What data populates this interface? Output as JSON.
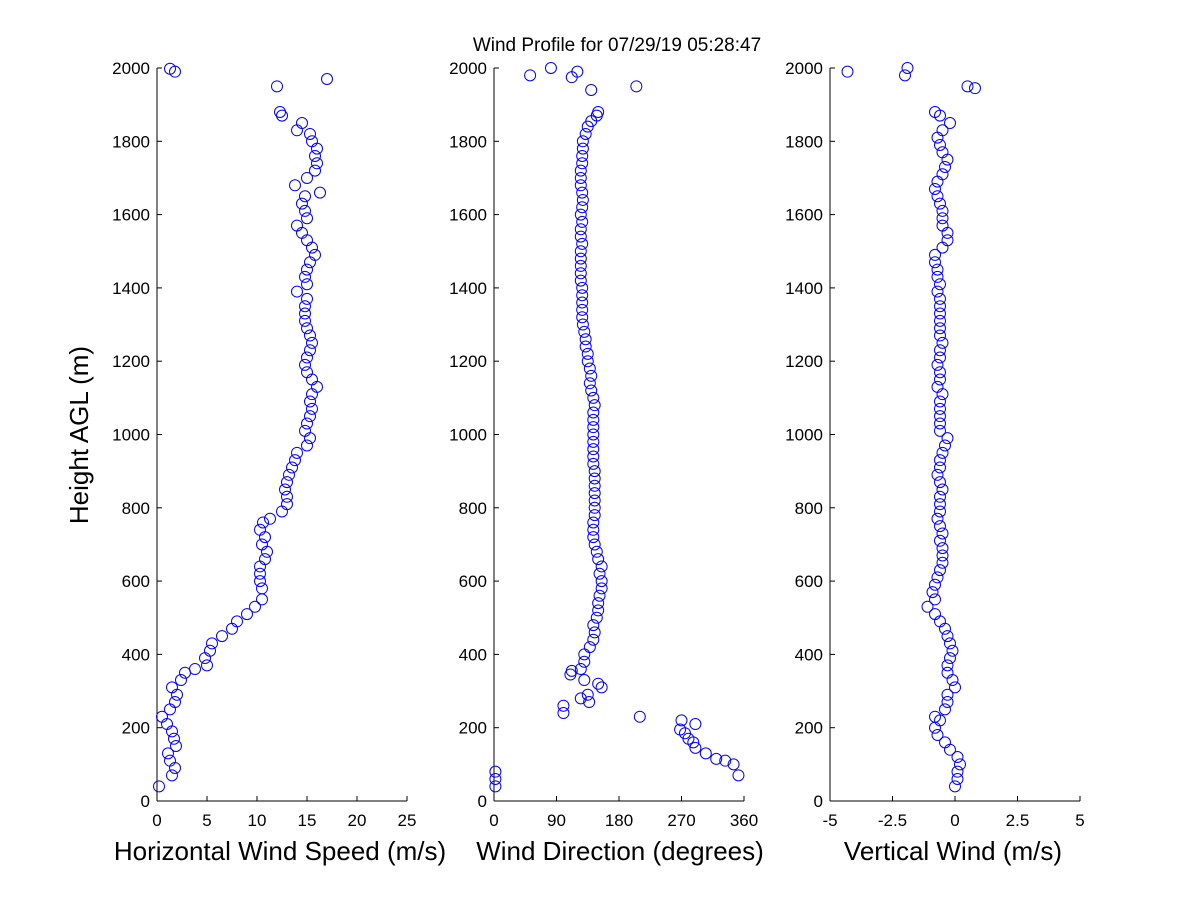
{
  "colors": {
    "marker": "#0000ff",
    "axis": "#000000",
    "background": "#ffffff"
  },
  "chart_data": {
    "title": "Wind Profile for  07/29/19 05:28:47",
    "ylabel": "Height AGL (m)",
    "ylim": [
      0,
      2000
    ],
    "yticks": [
      0,
      200,
      400,
      600,
      800,
      1000,
      1200,
      1400,
      1600,
      1800,
      2000
    ],
    "marker": "circle",
    "panels": [
      {
        "type": "scatter",
        "xlabel": "Horizontal Wind Speed (m/s)",
        "xlim": [
          0,
          25
        ],
        "xticks": [
          0,
          5,
          10,
          15,
          20,
          25
        ],
        "xtick_labels": [
          "0",
          "5",
          "10",
          "15",
          "20",
          "25"
        ],
        "points": [
          [
            0.2,
            40
          ],
          [
            1.5,
            70
          ],
          [
            1.8,
            90
          ],
          [
            1.3,
            110
          ],
          [
            1.1,
            130
          ],
          [
            1.9,
            150
          ],
          [
            1.7,
            170
          ],
          [
            1.5,
            190
          ],
          [
            1.0,
            210
          ],
          [
            0.5,
            230
          ],
          [
            1.3,
            250
          ],
          [
            1.8,
            270
          ],
          [
            2.0,
            290
          ],
          [
            1.5,
            310
          ],
          [
            2.4,
            330
          ],
          [
            2.8,
            350
          ],
          [
            3.8,
            360
          ],
          [
            5.0,
            370
          ],
          [
            4.8,
            390
          ],
          [
            5.3,
            410
          ],
          [
            5.5,
            430
          ],
          [
            6.5,
            450
          ],
          [
            7.5,
            470
          ],
          [
            8.0,
            490
          ],
          [
            9.0,
            510
          ],
          [
            9.8,
            530
          ],
          [
            10.5,
            550
          ],
          [
            10.5,
            580
          ],
          [
            10.3,
            600
          ],
          [
            10.3,
            620
          ],
          [
            10.3,
            640
          ],
          [
            10.8,
            660
          ],
          [
            11.0,
            680
          ],
          [
            10.5,
            700
          ],
          [
            10.8,
            720
          ],
          [
            10.3,
            740
          ],
          [
            10.6,
            760
          ],
          [
            11.3,
            770
          ],
          [
            12.5,
            790
          ],
          [
            13.0,
            810
          ],
          [
            13.0,
            830
          ],
          [
            12.8,
            850
          ],
          [
            13.0,
            870
          ],
          [
            13.2,
            890
          ],
          [
            13.5,
            910
          ],
          [
            13.8,
            930
          ],
          [
            14.0,
            950
          ],
          [
            15.0,
            970
          ],
          [
            15.3,
            990
          ],
          [
            14.8,
            1010
          ],
          [
            15.0,
            1030
          ],
          [
            15.3,
            1050
          ],
          [
            15.5,
            1070
          ],
          [
            15.3,
            1090
          ],
          [
            15.5,
            1110
          ],
          [
            16.0,
            1130
          ],
          [
            15.5,
            1150
          ],
          [
            15.0,
            1170
          ],
          [
            14.8,
            1190
          ],
          [
            15.0,
            1210
          ],
          [
            15.3,
            1230
          ],
          [
            15.5,
            1250
          ],
          [
            15.3,
            1270
          ],
          [
            15.0,
            1290
          ],
          [
            14.8,
            1310
          ],
          [
            14.8,
            1330
          ],
          [
            14.8,
            1350
          ],
          [
            15.0,
            1370
          ],
          [
            14.0,
            1390
          ],
          [
            15.0,
            1410
          ],
          [
            14.8,
            1430
          ],
          [
            15.0,
            1450
          ],
          [
            15.3,
            1470
          ],
          [
            15.8,
            1490
          ],
          [
            15.5,
            1510
          ],
          [
            15.0,
            1530
          ],
          [
            14.5,
            1550
          ],
          [
            14.0,
            1570
          ],
          [
            15.0,
            1590
          ],
          [
            14.8,
            1610
          ],
          [
            14.5,
            1630
          ],
          [
            14.8,
            1650
          ],
          [
            16.3,
            1660
          ],
          [
            13.8,
            1680
          ],
          [
            15.0,
            1700
          ],
          [
            15.8,
            1720
          ],
          [
            16.0,
            1740
          ],
          [
            15.8,
            1760
          ],
          [
            16.0,
            1780
          ],
          [
            15.5,
            1800
          ],
          [
            15.3,
            1820
          ],
          [
            14.0,
            1830
          ],
          [
            14.5,
            1850
          ],
          [
            12.5,
            1870
          ],
          [
            12.3,
            1880
          ],
          [
            12.0,
            1950
          ],
          [
            17.0,
            1970
          ],
          [
            1.8,
            1990
          ],
          [
            1.3,
            1998
          ]
        ]
      },
      {
        "type": "scatter",
        "xlabel": "Wind Direction (degrees)",
        "xlim": [
          0,
          360
        ],
        "xticks": [
          0,
          90,
          180,
          270,
          360
        ],
        "xtick_labels": [
          "0",
          "90",
          "180",
          "270",
          "360"
        ],
        "points": [
          [
            2,
            40
          ],
          [
            2,
            60
          ],
          [
            2,
            80
          ],
          [
            352,
            70
          ],
          [
            345,
            100
          ],
          [
            333,
            110
          ],
          [
            320,
            115
          ],
          [
            305,
            130
          ],
          [
            290,
            145
          ],
          [
            287,
            160
          ],
          [
            280,
            170
          ],
          [
            275,
            185
          ],
          [
            268,
            195
          ],
          [
            270,
            220
          ],
          [
            290,
            210
          ],
          [
            210,
            230
          ],
          [
            100,
            240
          ],
          [
            100,
            260
          ],
          [
            137,
            270
          ],
          [
            135,
            290
          ],
          [
            125,
            280
          ],
          [
            155,
            310
          ],
          [
            150,
            320
          ],
          [
            130,
            330
          ],
          [
            110,
            345
          ],
          [
            125,
            360
          ],
          [
            112,
            355
          ],
          [
            130,
            380
          ],
          [
            130,
            400
          ],
          [
            138,
            420
          ],
          [
            143,
            440
          ],
          [
            145,
            460
          ],
          [
            143,
            480
          ],
          [
            148,
            500
          ],
          [
            150,
            520
          ],
          [
            150,
            540
          ],
          [
            152,
            560
          ],
          [
            155,
            580
          ],
          [
            155,
            600
          ],
          [
            152,
            620
          ],
          [
            155,
            640
          ],
          [
            150,
            660
          ],
          [
            148,
            680
          ],
          [
            145,
            700
          ],
          [
            143,
            720
          ],
          [
            143,
            740
          ],
          [
            143,
            760
          ],
          [
            145,
            780
          ],
          [
            145,
            800
          ],
          [
            145,
            820
          ],
          [
            145,
            840
          ],
          [
            145,
            860
          ],
          [
            145,
            880
          ],
          [
            145,
            900
          ],
          [
            143,
            920
          ],
          [
            143,
            940
          ],
          [
            143,
            960
          ],
          [
            143,
            980
          ],
          [
            143,
            1000
          ],
          [
            143,
            1020
          ],
          [
            143,
            1040
          ],
          [
            143,
            1060
          ],
          [
            145,
            1080
          ],
          [
            143,
            1100
          ],
          [
            140,
            1120
          ],
          [
            138,
            1140
          ],
          [
            140,
            1160
          ],
          [
            138,
            1180
          ],
          [
            135,
            1200
          ],
          [
            135,
            1220
          ],
          [
            132,
            1240
          ],
          [
            132,
            1260
          ],
          [
            130,
            1280
          ],
          [
            128,
            1300
          ],
          [
            127,
            1320
          ],
          [
            127,
            1340
          ],
          [
            127,
            1360
          ],
          [
            127,
            1380
          ],
          [
            127,
            1400
          ],
          [
            125,
            1420
          ],
          [
            125,
            1440
          ],
          [
            125,
            1460
          ],
          [
            125,
            1480
          ],
          [
            125,
            1500
          ],
          [
            127,
            1520
          ],
          [
            125,
            1540
          ],
          [
            125,
            1560
          ],
          [
            127,
            1580
          ],
          [
            125,
            1600
          ],
          [
            127,
            1620
          ],
          [
            128,
            1640
          ],
          [
            127,
            1660
          ],
          [
            125,
            1680
          ],
          [
            125,
            1700
          ],
          [
            125,
            1720
          ],
          [
            127,
            1740
          ],
          [
            127,
            1760
          ],
          [
            128,
            1780
          ],
          [
            128,
            1800
          ],
          [
            132,
            1820
          ],
          [
            135,
            1840
          ],
          [
            140,
            1855
          ],
          [
            148,
            1870
          ],
          [
            150,
            1880
          ],
          [
            140,
            1940
          ],
          [
            205,
            1950
          ],
          [
            52,
            1980
          ],
          [
            112,
            1975
          ],
          [
            82,
            2000
          ],
          [
            120,
            1990
          ]
        ]
      },
      {
        "type": "scatter",
        "xlabel": "Vertical Wind (m/s)",
        "xlim": [
          -5,
          5
        ],
        "xticks": [
          -5,
          -2.5,
          0,
          2.5,
          5
        ],
        "xtick_labels": [
          "-5",
          "-2.5",
          "0",
          "2.5",
          "5"
        ],
        "points": [
          [
            0,
            40
          ],
          [
            0.1,
            60
          ],
          [
            0.1,
            80
          ],
          [
            0.2,
            100
          ],
          [
            0.1,
            120
          ],
          [
            -0.2,
            140
          ],
          [
            -0.4,
            160
          ],
          [
            -0.7,
            180
          ],
          [
            -0.8,
            200
          ],
          [
            -0.6,
            220
          ],
          [
            -0.8,
            230
          ],
          [
            -0.4,
            250
          ],
          [
            -0.3,
            270
          ],
          [
            -0.3,
            290
          ],
          [
            0,
            310
          ],
          [
            -0.1,
            330
          ],
          [
            -0.3,
            350
          ],
          [
            -0.3,
            370
          ],
          [
            -0.2,
            390
          ],
          [
            -0.1,
            410
          ],
          [
            -0.2,
            430
          ],
          [
            -0.3,
            450
          ],
          [
            -0.4,
            470
          ],
          [
            -0.6,
            490
          ],
          [
            -0.8,
            510
          ],
          [
            -1.1,
            530
          ],
          [
            -0.8,
            550
          ],
          [
            -0.9,
            570
          ],
          [
            -0.8,
            590
          ],
          [
            -0.7,
            610
          ],
          [
            -0.6,
            630
          ],
          [
            -0.5,
            650
          ],
          [
            -0.5,
            670
          ],
          [
            -0.5,
            690
          ],
          [
            -0.6,
            710
          ],
          [
            -0.5,
            730
          ],
          [
            -0.6,
            750
          ],
          [
            -0.7,
            770
          ],
          [
            -0.6,
            790
          ],
          [
            -0.6,
            810
          ],
          [
            -0.6,
            830
          ],
          [
            -0.5,
            850
          ],
          [
            -0.6,
            870
          ],
          [
            -0.7,
            890
          ],
          [
            -0.6,
            910
          ],
          [
            -0.6,
            930
          ],
          [
            -0.5,
            950
          ],
          [
            -0.4,
            970
          ],
          [
            -0.3,
            990
          ],
          [
            -0.6,
            1010
          ],
          [
            -0.6,
            1030
          ],
          [
            -0.6,
            1050
          ],
          [
            -0.6,
            1070
          ],
          [
            -0.6,
            1090
          ],
          [
            -0.5,
            1110
          ],
          [
            -0.7,
            1130
          ],
          [
            -0.6,
            1150
          ],
          [
            -0.6,
            1170
          ],
          [
            -0.7,
            1190
          ],
          [
            -0.6,
            1210
          ],
          [
            -0.6,
            1230
          ],
          [
            -0.5,
            1250
          ],
          [
            -0.6,
            1270
          ],
          [
            -0.6,
            1290
          ],
          [
            -0.6,
            1310
          ],
          [
            -0.6,
            1330
          ],
          [
            -0.6,
            1350
          ],
          [
            -0.6,
            1370
          ],
          [
            -0.7,
            1390
          ],
          [
            -0.6,
            1410
          ],
          [
            -0.7,
            1430
          ],
          [
            -0.7,
            1450
          ],
          [
            -0.8,
            1470
          ],
          [
            -0.8,
            1490
          ],
          [
            -0.5,
            1510
          ],
          [
            -0.3,
            1530
          ],
          [
            -0.3,
            1550
          ],
          [
            -0.5,
            1570
          ],
          [
            -0.5,
            1590
          ],
          [
            -0.5,
            1610
          ],
          [
            -0.6,
            1630
          ],
          [
            -0.7,
            1650
          ],
          [
            -0.8,
            1670
          ],
          [
            -0.7,
            1690
          ],
          [
            -0.5,
            1710
          ],
          [
            -0.4,
            1730
          ],
          [
            -0.3,
            1750
          ],
          [
            -0.5,
            1770
          ],
          [
            -0.6,
            1790
          ],
          [
            -0.7,
            1810
          ],
          [
            -0.5,
            1830
          ],
          [
            -0.2,
            1850
          ],
          [
            -0.6,
            1870
          ],
          [
            -0.8,
            1880
          ],
          [
            0.8,
            1945
          ],
          [
            0.5,
            1950
          ],
          [
            -4.3,
            1990
          ],
          [
            -2.0,
            1980
          ],
          [
            -1.9,
            2000
          ]
        ]
      }
    ]
  }
}
